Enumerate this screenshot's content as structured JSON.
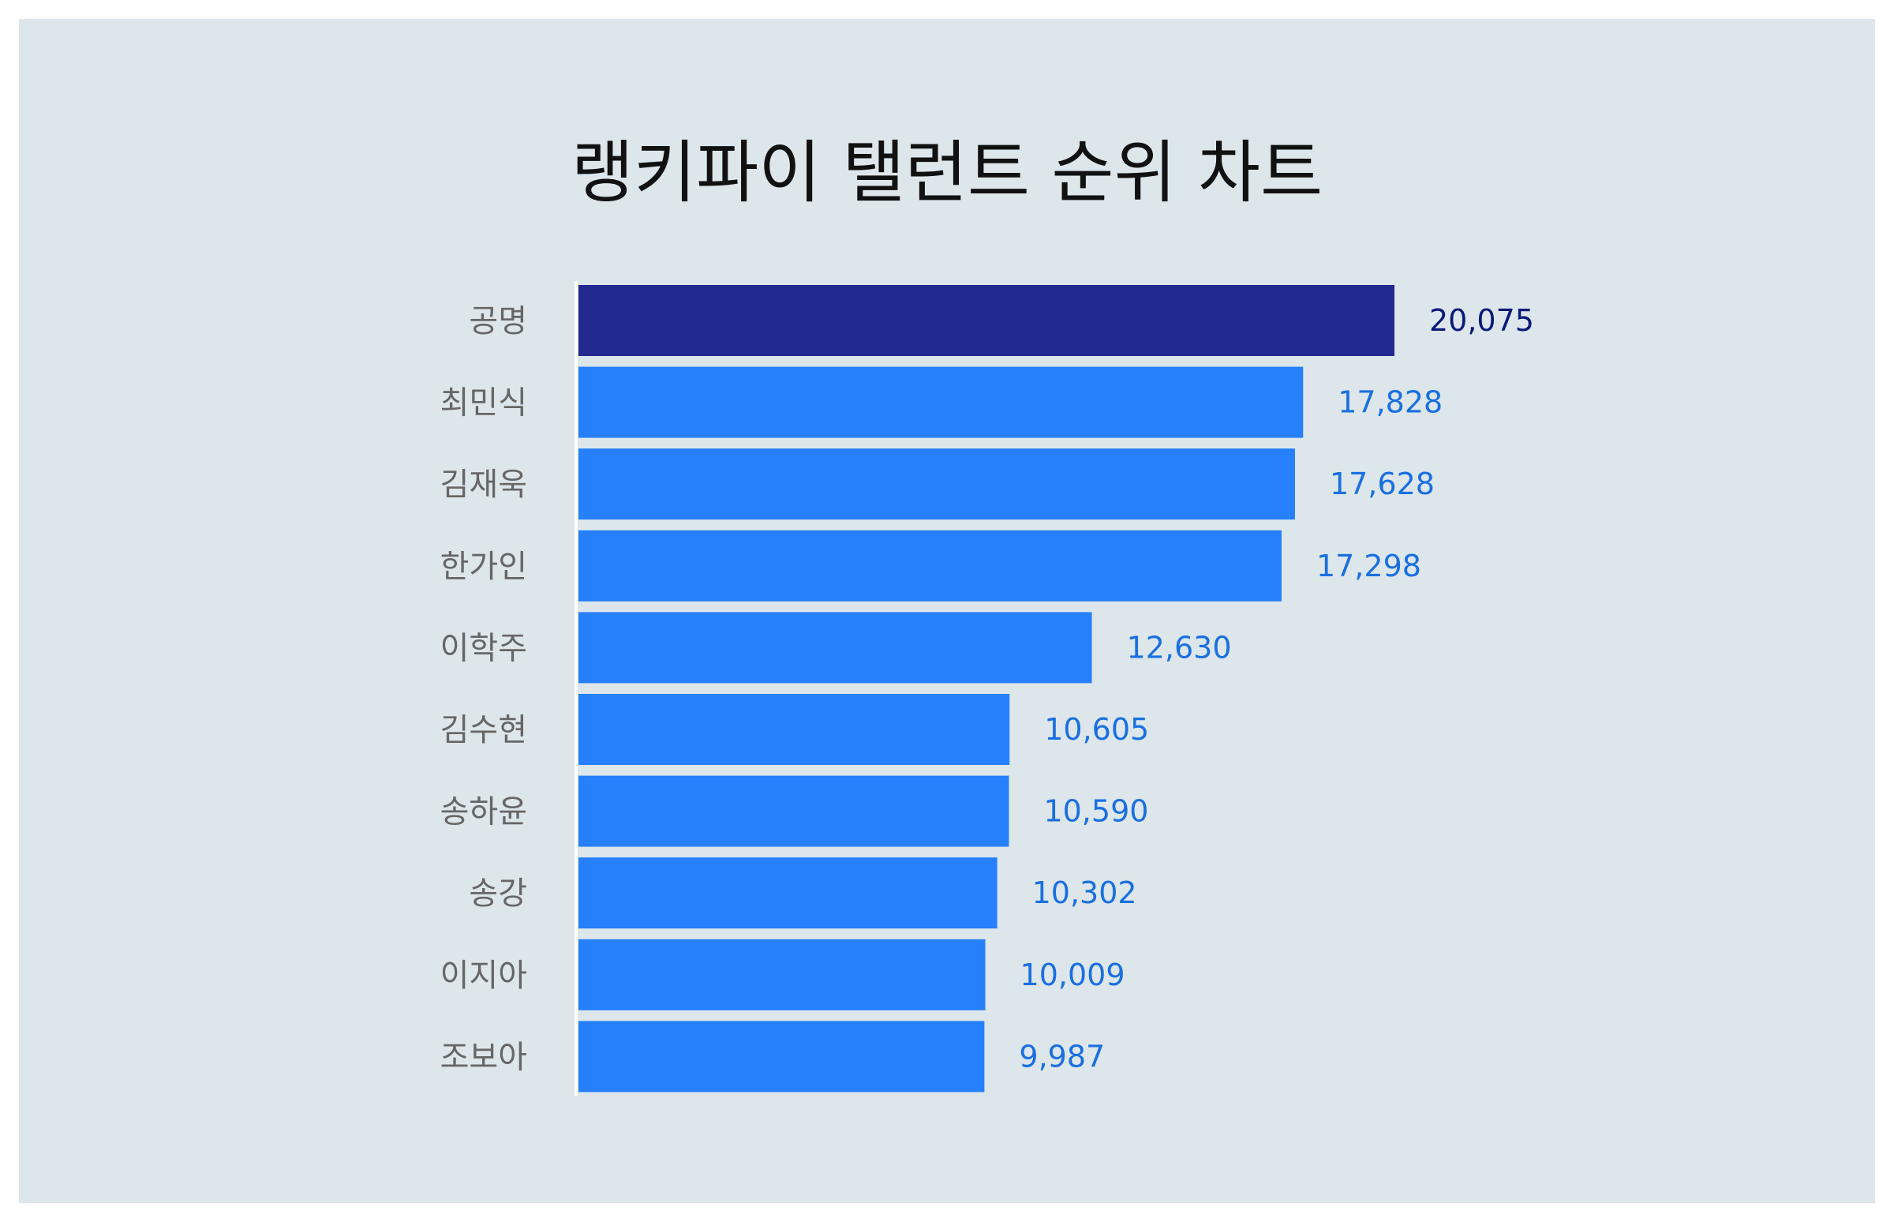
{
  "chart_data": {
    "type": "bar",
    "orientation": "horizontal",
    "title": "랭키파이 탤런트 순위 차트",
    "categories": [
      "공명",
      "최민식",
      "김재욱",
      "한가인",
      "이학주",
      "김수현",
      "송하윤",
      "송강",
      "이지아",
      "조보아"
    ],
    "values": [
      20075,
      17828,
      17628,
      17298,
      12630,
      10605,
      10590,
      10302,
      10009,
      9987
    ],
    "value_labels": [
      "20,075",
      "17,828",
      "17,628",
      "17,298",
      "12,630",
      "10,605",
      "10,590",
      "10,302",
      "10,009",
      "9,987"
    ],
    "xlim": [
      0,
      20075
    ],
    "grid": false,
    "colors": {
      "highlight_bar": "#222a92",
      "bar": "#2680fb",
      "highlight_label": "#0b1a78",
      "label": "#1a6fe0",
      "background": "#dce6eb"
    }
  }
}
